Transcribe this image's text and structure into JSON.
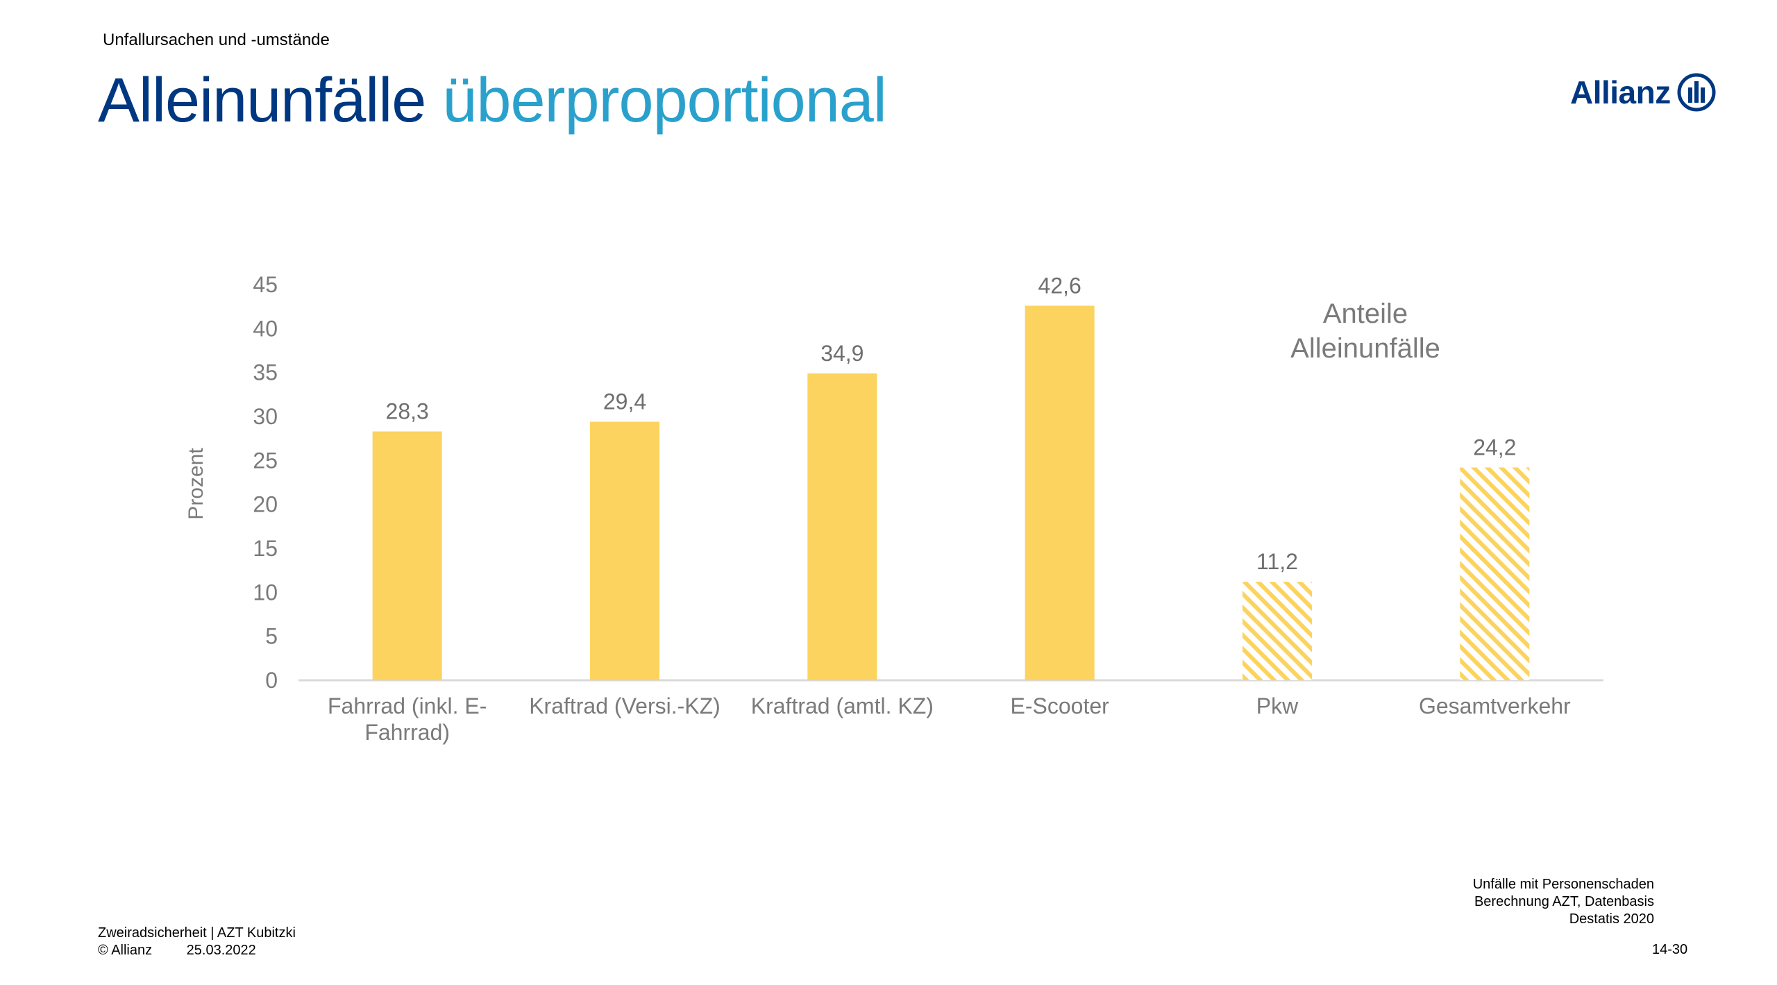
{
  "header": {
    "section": "Unfallursachen und -umstände",
    "title_part1": "Alleinunfälle",
    "title_part2": "überproportional",
    "logo_text": "Allianz"
  },
  "colors": {
    "title_dark": "#003781",
    "title_light": "#2aa1cc",
    "bar": "#fbd35e",
    "axis_text": "#7a7a7a"
  },
  "chart_data": {
    "type": "bar",
    "categories": [
      [
        "Fahrrad (inkl. E-",
        "Fahrrad)"
      ],
      [
        "Kraftrad (Versi.-KZ)"
      ],
      [
        "Kraftrad (amtl. KZ)"
      ],
      [
        "E-Scooter"
      ],
      [
        "Pkw"
      ],
      [
        "Gesamtverkehr"
      ]
    ],
    "values": [
      28.3,
      29.4,
      34.9,
      42.6,
      11.2,
      24.2
    ],
    "value_labels": [
      "28,3",
      "29,4",
      "34,9",
      "42,6",
      "11,2",
      "24,2"
    ],
    "hatched": [
      false,
      false,
      false,
      false,
      true,
      true
    ],
    "ylabel": "Prozent",
    "ylim": [
      0,
      45
    ],
    "yticks": [
      0,
      5,
      10,
      15,
      20,
      25,
      30,
      35,
      40,
      45
    ],
    "annotation": [
      "Anteile",
      "Alleinunfälle"
    ],
    "grid": false,
    "legend": "none"
  },
  "source_note": [
    "Unfälle mit Personenschaden",
    "Berechnung AZT,  Datenbasis",
    "Destatis 2020"
  ],
  "footer": {
    "line1": "Zweiradsicherheit | AZT Kubitzki",
    "copyright": "© Allianz",
    "date": "25.03.2022",
    "page": "14-30"
  }
}
